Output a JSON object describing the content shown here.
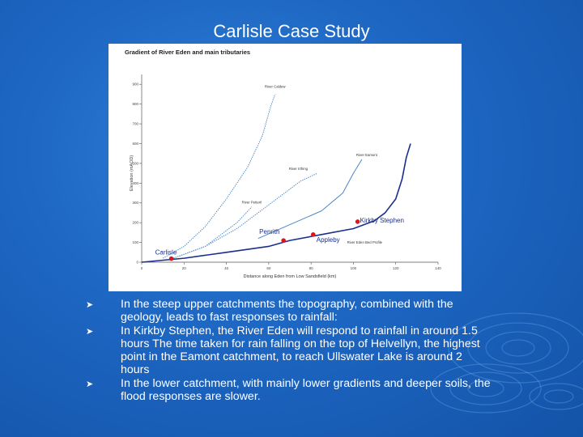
{
  "slide": {
    "title": "Carlisle Case Study",
    "bullets": [
      "In the steep upper catchments the topography, combined with the geology, leads to fast responses to rainfall:",
      "In Kirkby Stephen, the River Eden will respond to rainfall in around 1.5 hours The time taken for rain falling on the top of Helvellyn, the highest point in the Eamont catchment, to reach Ullswater Lake is around 2 hours",
      "In the lower catchment, with mainly lower gradients and deeper soils, the flood responses are slower."
    ],
    "bullet_icon": "arrow-bullet-icon"
  },
  "chart_data": {
    "type": "line",
    "title": "Gradient of River Eden and main tributaries",
    "xlabel": "Distance along Eden from Low Sandsfield (km)",
    "ylabel": "Elevation (mAOD)",
    "xlim": [
      0,
      140
    ],
    "ylim": [
      0,
      950
    ],
    "x_ticks": [
      "0",
      "20",
      "40",
      "60",
      "80",
      "100",
      "120",
      "140"
    ],
    "y_ticks": [
      "0",
      "100",
      "200",
      "300",
      "400",
      "500",
      "600",
      "700",
      "800",
      "900"
    ],
    "series": [
      {
        "name": "River Caldew",
        "style": "dotted",
        "color": "#4a86c8",
        "x": [
          10,
          20,
          30,
          40,
          50,
          57,
          61,
          63
        ],
        "y": [
          20,
          80,
          180,
          320,
          480,
          640,
          790,
          850
        ]
      },
      {
        "name": "River Irthing",
        "style": "dotted",
        "color": "#4a86c8",
        "x": [
          15,
          30,
          45,
          60,
          75,
          83
        ],
        "y": [
          20,
          80,
          170,
          290,
          410,
          450
        ]
      },
      {
        "name": "River Petteril",
        "style": "dotted",
        "color": "#4a86c8",
        "x": [
          15,
          30,
          45,
          52
        ],
        "y": [
          20,
          80,
          200,
          280
        ]
      },
      {
        "name": "River Eamont",
        "style": "solid",
        "color": "#4a86c8",
        "x": [
          55,
          70,
          85,
          95,
          100,
          104
        ],
        "y": [
          120,
          190,
          260,
          350,
          450,
          520
        ]
      },
      {
        "name": "River Eden Bed Profile",
        "style": "solid",
        "color": "#1a2f8c",
        "x": [
          0,
          20,
          40,
          60,
          70,
          85,
          100,
          110,
          115,
          120,
          123,
          125,
          127
        ],
        "y": [
          0,
          20,
          50,
          80,
          110,
          140,
          170,
          210,
          250,
          320,
          420,
          530,
          600
        ]
      }
    ],
    "points": [
      {
        "label": "Carlisle",
        "x": 14,
        "y": 18
      },
      {
        "label": "Penrith",
        "x": 67,
        "y": 110
      },
      {
        "label": "Appleby",
        "x": 81,
        "y": 140
      },
      {
        "label": "Kirkby Stephen",
        "x": 102,
        "y": 205
      }
    ],
    "point_color": "#e0141c",
    "grid": false,
    "legend": "inline labels"
  }
}
